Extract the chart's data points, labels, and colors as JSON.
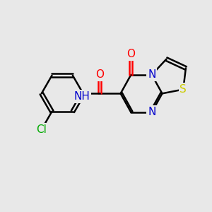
{
  "background_color": "#e8e8e8",
  "bond_color": "#000000",
  "atom_colors": {
    "O": "#ff0000",
    "N": "#0000cc",
    "S": "#cccc00",
    "Cl": "#00aa00",
    "C": "#000000",
    "H": "#000000"
  },
  "bond_width": 1.8,
  "font_size": 11,
  "figsize": [
    3.0,
    3.0
  ],
  "dpi": 100
}
